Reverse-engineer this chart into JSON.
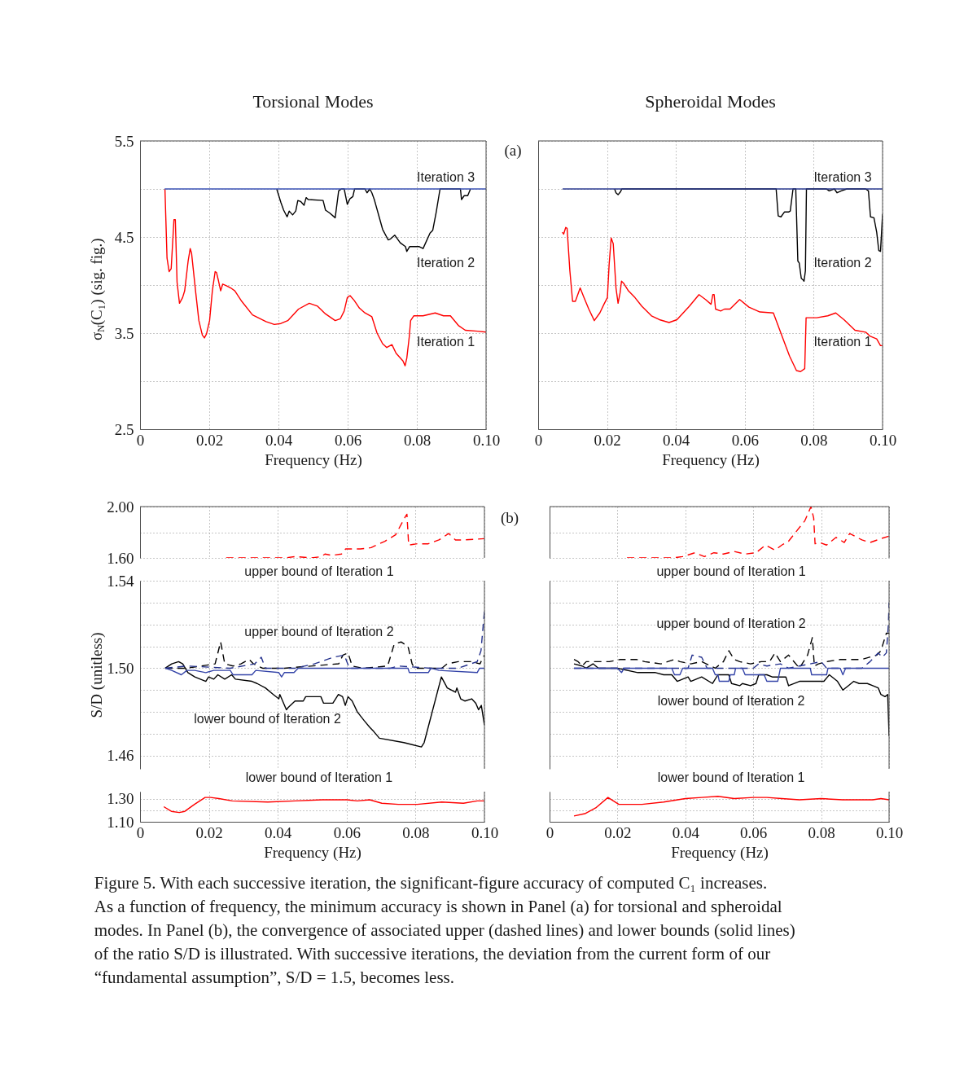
{
  "chart_data": [
    {
      "type": "line",
      "title": "Torsional Modes",
      "xlabel": "Frequency (Hz)",
      "ylabel": "σ$_{N}$(C₁) (sig. fig.)",
      "annotations": [
        "(a)"
      ],
      "xlim": [
        0,
        0.1
      ],
      "ylim": [
        2.5,
        5.5
      ],
      "xticks": [
        0,
        0.02,
        0.04,
        0.06,
        0.08,
        {
          "value": 0.1,
          "label": "0.10"
        }
      ],
      "yticks": [
        2.5,
        {
          "value": 3,
          "label": null
        },
        3.5,
        {
          "value": 4,
          "label": null
        },
        4.5,
        {
          "value": 5,
          "label": null
        },
        5.5
      ],
      "grid": true,
      "line_style": "solid",
      "series": [
        {
          "name": "Iteration 1",
          "color": "#ff0000",
          "x": [
            0.0072,
            0.0078,
            0.0084,
            0.009,
            0.0098,
            0.0102,
            0.0107,
            0.0114,
            0.0123,
            0.0129,
            0.0139,
            0.0145,
            0.0149,
            0.0161,
            0.017,
            0.018,
            0.0186,
            0.0192,
            0.0201,
            0.0209,
            0.0217,
            0.0221,
            0.0227,
            0.0233,
            0.0239,
            0.0251,
            0.0262,
            0.0274,
            0.0294,
            0.0325,
            0.0364,
            0.0388,
            0.0407,
            0.0427,
            0.0458,
            0.0489,
            0.0513,
            0.0536,
            0.0564,
            0.0579,
            0.059,
            0.0599,
            0.0607,
            0.0619,
            0.0634,
            0.065,
            0.067,
            0.0685,
            0.0701,
            0.0713,
            0.0728,
            0.074,
            0.076,
            0.0766,
            0.0771,
            0.0778,
            0.0782,
            0.0791,
            0.0818,
            0.0853,
            0.0877,
            0.0897,
            0.092,
            0.094,
            0.0975,
            0.1
          ],
          "values": [
            5.0,
            4.28,
            4.14,
            4.17,
            4.68,
            4.68,
            4.03,
            3.81,
            3.87,
            3.94,
            4.25,
            4.38,
            4.33,
            3.92,
            3.63,
            3.48,
            3.45,
            3.49,
            3.63,
            3.94,
            4.14,
            4.13,
            4.04,
            3.94,
            4.01,
            3.99,
            3.97,
            3.94,
            3.83,
            3.69,
            3.62,
            3.59,
            3.6,
            3.63,
            3.75,
            3.81,
            3.78,
            3.7,
            3.63,
            3.65,
            3.73,
            3.87,
            3.89,
            3.84,
            3.76,
            3.71,
            3.67,
            3.5,
            3.39,
            3.35,
            3.38,
            3.29,
            3.21,
            3.16,
            3.24,
            3.46,
            3.63,
            3.68,
            3.68,
            3.71,
            3.68,
            3.68,
            3.58,
            3.53,
            3.52,
            3.51
          ]
        },
        {
          "name": "Iteration 2",
          "color": "#000000",
          "x": [
            0.0395,
            0.0407,
            0.0415,
            0.0425,
            0.0431,
            0.0441,
            0.045,
            0.0456,
            0.0464,
            0.0474,
            0.048,
            0.0486,
            0.0529,
            0.0536,
            0.0548,
            0.0564,
            0.0574,
            0.0582,
            0.059,
            0.0599,
            0.0607,
            0.0615,
            0.062,
            0.065,
            0.0656,
            0.0664,
            0.067,
            0.0677,
            0.0691,
            0.0701,
            0.0717,
            0.0724,
            0.0736,
            0.0752,
            0.0767,
            0.0771,
            0.0779,
            0.0807,
            0.0818,
            0.0838,
            0.0846,
            0.0856,
            0.0867,
            0.0926,
            0.0929,
            0.0937,
            0.0947,
            0.0955
          ],
          "values": [
            5.0,
            4.86,
            4.78,
            4.71,
            4.77,
            4.73,
            4.77,
            4.88,
            4.87,
            4.83,
            4.91,
            4.89,
            4.88,
            4.78,
            4.75,
            4.7,
            4.98,
            5.0,
            5.0,
            4.84,
            4.9,
            4.92,
            5.0,
            5.0,
            4.96,
            5.0,
            4.96,
            4.89,
            4.71,
            4.58,
            4.47,
            4.48,
            4.52,
            4.44,
            4.4,
            4.35,
            4.4,
            4.4,
            4.38,
            4.54,
            4.57,
            4.76,
            5.0,
            5.0,
            4.89,
            4.93,
            4.93,
            5.0
          ]
        },
        {
          "name": "Iteration 3",
          "color": "#3a52b4",
          "x": [
            0.0071,
            0.1
          ],
          "values": [
            5.0,
            5.0
          ]
        }
      ]
    },
    {
      "type": "line",
      "title": "Spheroidal Modes",
      "xlabel": "Frequency (Hz)",
      "xlim": [
        0,
        0.1
      ],
      "ylim": [
        2.5,
        5.5
      ],
      "xticks": [
        0,
        0.02,
        0.04,
        0.06,
        0.08,
        {
          "value": 0.1,
          "label": "0.10"
        }
      ],
      "yticks": [
        {
          "value": 2.5,
          "label": null
        },
        {
          "value": 3,
          "label": null
        },
        {
          "value": 3.5,
          "label": null
        },
        {
          "value": 4,
          "label": null
        },
        {
          "value": 4.5,
          "label": null
        },
        {
          "value": 5,
          "label": null
        },
        {
          "value": 5.5,
          "label": null
        }
      ],
      "tick_labels": "x",
      "grid": true,
      "line_style": "solid",
      "series": [
        {
          "name": "Iteration 1",
          "color": "#ff0000",
          "x": [
            0.007,
            0.0074,
            0.008,
            0.0084,
            0.0092,
            0.01,
            0.0108,
            0.0122,
            0.0132,
            0.0147,
            0.0163,
            0.0179,
            0.0191,
            0.0201,
            0.0206,
            0.0212,
            0.0218,
            0.0226,
            0.0232,
            0.0238,
            0.0242,
            0.0248,
            0.0262,
            0.0281,
            0.0301,
            0.0329,
            0.0352,
            0.038,
            0.0403,
            0.0439,
            0.0467,
            0.0486,
            0.0502,
            0.0507,
            0.0511,
            0.0515,
            0.053,
            0.0541,
            0.0557,
            0.0585,
            0.0612,
            0.0644,
            0.0683,
            0.0711,
            0.073,
            0.075,
            0.0762,
            0.0774,
            0.0778,
            0.0809,
            0.0841,
            0.0864,
            0.0888,
            0.092,
            0.0951,
            0.0963,
            0.0983,
            0.0994,
            0.1
          ],
          "values": [
            4.55,
            4.53,
            4.6,
            4.59,
            4.15,
            3.83,
            3.83,
            3.97,
            3.88,
            3.75,
            3.63,
            3.71,
            3.8,
            3.87,
            4.21,
            4.49,
            4.43,
            3.97,
            3.81,
            3.92,
            4.04,
            4.02,
            3.94,
            3.87,
            3.78,
            3.68,
            3.64,
            3.61,
            3.64,
            3.78,
            3.9,
            3.85,
            3.8,
            3.9,
            3.9,
            3.75,
            3.73,
            3.75,
            3.75,
            3.85,
            3.77,
            3.72,
            3.71,
            3.44,
            3.26,
            3.11,
            3.1,
            3.13,
            3.66,
            3.66,
            3.68,
            3.71,
            3.64,
            3.53,
            3.51,
            3.47,
            3.44,
            3.37,
            3.37
          ]
        },
        {
          "name": "Iteration 2",
          "color": "#000000",
          "x": [
            0.0222,
            0.0226,
            0.0232,
            0.0239,
            0.0243,
            0.0691,
            0.0697,
            0.0705,
            0.0715,
            0.0727,
            0.0732,
            0.074,
            0.0748,
            0.0754,
            0.0758,
            0.0764,
            0.077,
            0.0772,
            0.0776,
            0.0779,
            0.0837,
            0.0845,
            0.0853,
            0.086,
            0.0868,
            0.088,
            0.0896,
            0.0951,
            0.0959,
            0.0965,
            0.0975,
            0.0983,
            0.0989,
            0.0994,
            0.1
          ],
          "values": [
            5.0,
            4.96,
            4.94,
            4.97,
            5.0,
            5.0,
            4.72,
            4.71,
            4.76,
            4.76,
            4.77,
            5.0,
            5.0,
            4.25,
            4.23,
            4.07,
            4.05,
            4.04,
            4.15,
            5.0,
            5.0,
            4.98,
            4.99,
            5.0,
            4.96,
            4.98,
            5.0,
            5.0,
            4.98,
            4.71,
            4.7,
            4.55,
            4.36,
            4.35,
            4.74
          ]
        },
        {
          "name": "Iteration 3",
          "color": "#2a3a8f",
          "x": [
            0.0071,
            0.1
          ],
          "values": [
            5.0,
            5.0
          ]
        }
      ]
    },
    {
      "type": "line",
      "annotations": [
        "(b)"
      ],
      "xlim": [
        0,
        0.1
      ],
      "ylim": [
        1.6,
        2.0
      ],
      "xticks": [
        {
          "value": 0,
          "label": null
        },
        {
          "value": 0.02,
          "label": null
        },
        {
          "value": 0.04,
          "label": null
        },
        {
          "value": 0.06,
          "label": null
        },
        {
          "value": 0.08,
          "label": null
        },
        {
          "value": 0.1,
          "label": null
        }
      ],
      "yticks": [
        {
          "value": 1.6,
          "label": "1.60"
        },
        {
          "value": 1.8,
          "label": null
        },
        {
          "value": 2,
          "label": "2.00"
        }
      ],
      "tick_labels": "y",
      "grid": true,
      "line_style": "dashed",
      "series": [
        {
          "name": "upper bound of Iteration 1",
          "color": "#ff0000",
          "x": [
            0.025,
            0.0317,
            0.0372,
            0.0419,
            0.0451,
            0.0498,
            0.0526,
            0.0537,
            0.0557,
            0.0585,
            0.0597,
            0.064,
            0.0671,
            0.0711,
            0.0742,
            0.077,
            0.0775,
            0.078,
            0.0805,
            0.0837,
            0.0868,
            0.0896,
            0.0916,
            0.0939,
            0.1
          ],
          "values": [
            1.6,
            1.6,
            1.6,
            1.6,
            1.61,
            1.6,
            1.61,
            1.63,
            1.62,
            1.63,
            1.67,
            1.67,
            1.68,
            1.73,
            1.78,
            1.92,
            1.94,
            1.7,
            1.71,
            1.71,
            1.74,
            1.79,
            1.74,
            1.74,
            1.75
          ]
        }
      ]
    },
    {
      "type": "line",
      "ylabel": "S/D (unitless)",
      "xlim": [
        0,
        0.1
      ],
      "ylim": [
        1.454,
        1.54
      ],
      "xticks": [
        {
          "value": 0,
          "label": null
        },
        {
          "value": 0.02,
          "label": null
        },
        {
          "value": 0.04,
          "label": null
        },
        {
          "value": 0.06,
          "label": null
        },
        {
          "value": 0.08,
          "label": null
        },
        {
          "value": 0.1,
          "label": null
        }
      ],
      "yticks": [
        1.46,
        {
          "value": 1.47,
          "label": null
        },
        {
          "value": 1.48,
          "label": null
        },
        {
          "value": 1.49,
          "label": null
        },
        {
          "value": 1.5,
          "label": "1.50"
        },
        {
          "value": 1.51,
          "label": null
        },
        {
          "value": 1.52,
          "label": null
        },
        {
          "value": 1.53,
          "label": null
        },
        1.54
      ],
      "tick_labels": "y",
      "grid": true,
      "line_style": "solid",
      "series": [
        {
          "name": "upper bound of Iteration 2",
          "color": "#000000",
          "line_style": "dashed",
          "x": [
            0.0073,
            0.0136,
            0.0218,
            0.0234,
            0.0246,
            0.027,
            0.0293,
            0.0317,
            0.0329,
            0.0356,
            0.0419,
            0.0577,
            0.0589,
            0.0604,
            0.0616,
            0.0648,
            0.0719,
            0.0738,
            0.0758,
            0.0778,
            0.079,
            0.0797,
            0.0876,
            0.0892,
            0.0924,
            0.0963,
            0.0987,
            0.1
          ],
          "values": [
            1.5,
            1.5,
            1.502,
            1.512,
            1.502,
            1.501,
            1.502,
            1.504,
            1.502,
            1.5,
            1.5,
            1.502,
            1.506,
            1.507,
            1.501,
            1.5,
            1.501,
            1.511,
            1.512,
            1.51,
            1.502,
            1.5,
            1.5,
            1.502,
            1.503,
            1.503,
            1.502,
            1.506
          ]
        },
        {
          "name": "lower bound of Iteration 2",
          "color": "#000000",
          "x": [
            0.0073,
            0.0092,
            0.0112,
            0.0124,
            0.0139,
            0.0159,
            0.0175,
            0.0191,
            0.0199,
            0.0214,
            0.0226,
            0.0246,
            0.0266,
            0.0277,
            0.0325,
            0.034,
            0.0364,
            0.0387,
            0.0403,
            0.0406,
            0.0425,
            0.043,
            0.045,
            0.0474,
            0.0481,
            0.0525,
            0.0533,
            0.056,
            0.0576,
            0.0588,
            0.0596,
            0.0604,
            0.0616,
            0.0631,
            0.0651,
            0.0667,
            0.0679,
            0.0695,
            0.0766,
            0.0817,
            0.0825,
            0.0845,
            0.0875,
            0.0892,
            0.0916,
            0.092,
            0.0931,
            0.0943,
            0.0963,
            0.0975,
            0.0983,
            0.0991,
            0.1
          ],
          "values": [
            1.5,
            1.502,
            1.503,
            1.502,
            1.498,
            1.496,
            1.495,
            1.494,
            1.496,
            1.495,
            1.497,
            1.495,
            1.497,
            1.495,
            1.494,
            1.493,
            1.491,
            1.488,
            1.486,
            1.488,
            1.481,
            1.482,
            1.485,
            1.485,
            1.487,
            1.487,
            1.484,
            1.484,
            1.488,
            1.487,
            1.483,
            1.487,
            1.485,
            1.48,
            1.476,
            1.473,
            1.471,
            1.468,
            1.466,
            1.464,
            1.466,
            1.478,
            1.496,
            1.491,
            1.489,
            1.491,
            1.486,
            1.485,
            1.486,
            1.484,
            1.481,
            1.483,
            1.474
          ]
        },
        {
          "color": "#23308c",
          "line_style": "dashed",
          "x": [
            0.0073,
            0.0136,
            0.0262,
            0.0333,
            0.0352,
            0.0364,
            0.045,
            0.0506,
            0.0561,
            0.0593,
            0.0608,
            0.0727,
            0.075,
            0.0845,
            0.0924,
            0.0979,
            0.099,
            0.1
          ],
          "values": [
            1.5,
            1.501,
            1.5,
            1.502,
            1.505,
            1.5,
            1.5,
            1.502,
            1.505,
            1.506,
            1.5,
            1.5,
            1.501,
            1.5,
            1.5,
            1.503,
            1.508,
            1.526
          ]
        },
        {
          "color": "#3444a8",
          "x": [
            0.0073,
            0.0092,
            0.012,
            0.0136,
            0.0159,
            0.0191,
            0.0214,
            0.0262,
            0.027,
            0.0325,
            0.0336,
            0.0403,
            0.0411,
            0.0419,
            0.0447,
            0.0459,
            0.0778,
            0.0782,
            0.0837,
            0.0845,
            0.0868,
            0.0979,
            0.0986,
            0.1
          ],
          "values": [
            1.5,
            1.499,
            1.497,
            1.499,
            1.499,
            1.498,
            1.499,
            1.499,
            1.497,
            1.497,
            1.499,
            1.498,
            1.496,
            1.498,
            1.498,
            1.5,
            1.5,
            1.498,
            1.498,
            1.5,
            1.499,
            1.498,
            1.5,
            1.5
          ]
        }
      ]
    },
    {
      "type": "line",
      "xlabel": "Frequency (Hz)",
      "annotations": [
        "Figure 5. With each successive iteration, the significant-figure accuracy of computed C₁ increases.\nAs a function of frequency, the minimum accuracy is shown in Panel (a) for torsional and spheroidal\nmodes. In Panel (b), the convergence of associated upper (dashed lines) and lower bounds (solid lines)\nof the ratio S/D is illustrated. With successive iterations, the deviation from the current form of our\n“fundamental assumption”, S/D = 1.5, becomes less."
      ],
      "xlim": [
        0,
        0.1
      ],
      "ylim": [
        1.1,
        1.36
      ],
      "xticks": [
        0,
        0.02,
        0.04,
        0.06,
        0.08,
        {
          "value": 0.1,
          "label": "0.10"
        }
      ],
      "yticks": [
        {
          "value": 1.1,
          "label": "1.10"
        },
        {
          "value": 1.2,
          "label": null
        },
        {
          "value": 1.3,
          "label": "1.30"
        }
      ],
      "grid": true,
      "line_style": "solid",
      "series": [
        {
          "name": "lower bound of Iteration 1",
          "color": "#ff0000",
          "x": [
            0.0069,
            0.0091,
            0.0114,
            0.013,
            0.0158,
            0.0189,
            0.0205,
            0.0229,
            0.0268,
            0.0371,
            0.045,
            0.0529,
            0.06,
            0.0631,
            0.0667,
            0.0702,
            0.075,
            0.0805,
            0.0876,
            0.0939,
            0.0979,
            0.1
          ],
          "values": [
            1.23,
            1.19,
            1.18,
            1.19,
            1.25,
            1.31,
            1.31,
            1.3,
            1.28,
            1.27,
            1.28,
            1.29,
            1.29,
            1.28,
            1.29,
            1.26,
            1.25,
            1.25,
            1.27,
            1.26,
            1.28,
            1.28
          ]
        }
      ]
    },
    {
      "type": "line",
      "xlim": [
        0,
        0.1
      ],
      "ylim": [
        1.6,
        2.0
      ],
      "xticks": [
        {
          "value": 0,
          "label": null
        },
        {
          "value": 0.02,
          "label": null
        },
        {
          "value": 0.04,
          "label": null
        },
        {
          "value": 0.06,
          "label": null
        },
        {
          "value": 0.08,
          "label": null
        },
        {
          "value": 0.1,
          "label": null
        }
      ],
      "yticks": [
        {
          "value": 1.6,
          "label": null
        },
        {
          "value": 1.8,
          "label": null
        },
        {
          "value": 2,
          "label": null
        }
      ],
      "tick_labels": false,
      "grid": true,
      "line_style": "dashed",
      "series": [
        {
          "name": "upper bound of Iteration 1",
          "color": "#ff0000",
          "x": [
            0.0228,
            0.0312,
            0.0364,
            0.0392,
            0.0428,
            0.0456,
            0.0484,
            0.0512,
            0.0544,
            0.0576,
            0.0608,
            0.0636,
            0.0664,
            0.0684,
            0.0704,
            0.0728,
            0.0752,
            0.077,
            0.0778,
            0.0782,
            0.0796,
            0.0816,
            0.0844,
            0.0868,
            0.0884,
            0.092,
            0.0944,
            0.0976,
            0.1
          ],
          "values": [
            1.6,
            1.6,
            1.6,
            1.61,
            1.64,
            1.61,
            1.64,
            1.63,
            1.65,
            1.63,
            1.64,
            1.7,
            1.66,
            1.7,
            1.73,
            1.81,
            1.89,
            2.0,
            1.91,
            1.71,
            1.72,
            1.7,
            1.76,
            1.72,
            1.79,
            1.74,
            1.72,
            1.75,
            1.77
          ]
        }
      ]
    },
    {
      "type": "line",
      "xlim": [
        0,
        0.1
      ],
      "ylim": [
        1.454,
        1.54
      ],
      "xticks": [
        {
          "value": 0,
          "label": null
        },
        {
          "value": 0.02,
          "label": null
        },
        {
          "value": 0.04,
          "label": null
        },
        {
          "value": 0.06,
          "label": null
        },
        {
          "value": 0.08,
          "label": null
        },
        {
          "value": 0.1,
          "label": null
        }
      ],
      "yticks": [
        {
          "value": 1.46,
          "label": null
        },
        {
          "value": 1.47,
          "label": null
        },
        {
          "value": 1.48,
          "label": null
        },
        {
          "value": 1.49,
          "label": null
        },
        {
          "value": 1.5,
          "label": null
        },
        {
          "value": 1.51,
          "label": null
        },
        {
          "value": 1.52,
          "label": null
        },
        {
          "value": 1.53,
          "label": null
        },
        {
          "value": 1.54,
          "label": null
        }
      ],
      "tick_labels": false,
      "grid": true,
      "line_style": "solid",
      "series": [
        {
          "name": "upper bound of Iteration 2",
          "color": "#000000",
          "line_style": "dashed",
          "x": [
            0.0072,
            0.0084,
            0.0096,
            0.0108,
            0.0128,
            0.0152,
            0.0176,
            0.0208,
            0.0256,
            0.028,
            0.0328,
            0.0368,
            0.0384,
            0.0416,
            0.0448,
            0.0488,
            0.0512,
            0.0528,
            0.0544,
            0.056,
            0.0592,
            0.0624,
            0.0648,
            0.0664,
            0.068,
            0.0704,
            0.0736,
            0.076,
            0.0774,
            0.078,
            0.0792,
            0.0816,
            0.0856,
            0.092,
            0.0964,
            0.0976,
            0.0992,
            0.1
          ],
          "values": [
            1.504,
            1.503,
            1.501,
            1.503,
            1.503,
            1.503,
            1.503,
            1.504,
            1.504,
            1.503,
            1.502,
            1.504,
            1.503,
            1.502,
            1.503,
            1.5,
            1.503,
            1.508,
            1.504,
            1.503,
            1.502,
            1.503,
            1.503,
            1.507,
            1.503,
            1.506,
            1.5,
            1.506,
            1.514,
            1.501,
            1.502,
            1.503,
            1.504,
            1.504,
            1.506,
            1.508,
            1.516,
            1.516
          ]
        },
        {
          "name": "lower bound of Iteration 2",
          "color": "#000000",
          "x": [
            0.0072,
            0.0096,
            0.0108,
            0.0128,
            0.0144,
            0.02,
            0.026,
            0.0312,
            0.0336,
            0.036,
            0.0376,
            0.0408,
            0.0416,
            0.0448,
            0.048,
            0.0496,
            0.0528,
            0.0536,
            0.056,
            0.0568,
            0.0592,
            0.0608,
            0.0616,
            0.064,
            0.0656,
            0.0696,
            0.0704,
            0.0736,
            0.0776,
            0.0808,
            0.0824,
            0.0848,
            0.0864,
            0.088,
            0.0896,
            0.0912,
            0.0936,
            0.0952,
            0.0968,
            0.0976,
            0.0988,
            0.0996,
            0.1
          ],
          "values": [
            1.502,
            1.501,
            1.5,
            1.502,
            1.5,
            1.5,
            1.498,
            1.498,
            1.497,
            1.497,
            1.494,
            1.496,
            1.494,
            1.496,
            1.493,
            1.497,
            1.497,
            1.493,
            1.492,
            1.493,
            1.492,
            1.493,
            1.497,
            1.497,
            1.496,
            1.496,
            1.492,
            1.494,
            1.494,
            1.494,
            1.497,
            1.494,
            1.49,
            1.492,
            1.494,
            1.493,
            1.493,
            1.492,
            1.491,
            1.488,
            1.487,
            1.488,
            1.469
          ]
        },
        {
          "color": "#23308c",
          "line_style": "dashed",
          "x": [
            0.0072,
            0.0408,
            0.042,
            0.0448,
            0.0464,
            0.06,
            0.0616,
            0.064,
            0.068,
            0.0704,
            0.08,
            0.0816,
            0.092,
            0.0944,
            0.0968,
            0.098,
            0.0992,
            0.0998,
            0.1
          ],
          "values": [
            1.5,
            1.5,
            1.506,
            1.505,
            1.5,
            1.5,
            1.502,
            1.501,
            1.502,
            1.5,
            1.503,
            1.5,
            1.5,
            1.503,
            1.507,
            1.505,
            1.507,
            1.52,
            1.53
          ]
        },
        {
          "color": "#3444a8",
          "x": [
            0.0072,
            0.02,
            0.0212,
            0.022,
            0.036,
            0.0368,
            0.0384,
            0.0392,
            0.048,
            0.0488,
            0.0496,
            0.05,
            0.0528,
            0.0532,
            0.0544,
            0.0548,
            0.0568,
            0.0576,
            0.0632,
            0.064,
            0.0672,
            0.068,
            0.0768,
            0.0772,
            0.0816,
            0.082,
            0.0856,
            0.0864,
            0.0872,
            0.1
          ],
          "values": [
            1.5,
            1.5,
            1.498,
            1.5,
            1.5,
            1.497,
            1.497,
            1.5,
            1.5,
            1.497,
            1.497,
            1.494,
            1.494,
            1.497,
            1.497,
            1.5,
            1.5,
            1.497,
            1.497,
            1.494,
            1.494,
            1.5,
            1.5,
            1.497,
            1.497,
            1.5,
            1.5,
            1.497,
            1.5,
            1.5
          ]
        }
      ]
    },
    {
      "type": "line",
      "xlabel": "Frequency (Hz)",
      "xlim": [
        0,
        0.1
      ],
      "ylim": [
        1.1,
        1.36
      ],
      "xticks": [
        0,
        0.02,
        0.04,
        0.06,
        0.08,
        {
          "value": 0.1,
          "label": "0.10"
        }
      ],
      "yticks": [
        {
          "value": 1.1,
          "label": null
        },
        {
          "value": 1.2,
          "label": null
        },
        {
          "value": 1.3,
          "label": null
        }
      ],
      "tick_labels": "x",
      "grid": true,
      "line_style": "solid",
      "series": [
        {
          "name": "lower bound of Iteration 1",
          "color": "#ff0000",
          "x": [
            0.0072,
            0.0104,
            0.0136,
            0.0172,
            0.0204,
            0.0224,
            0.0272,
            0.0336,
            0.04,
            0.0448,
            0.0496,
            0.0544,
            0.06,
            0.064,
            0.0684,
            0.0736,
            0.08,
            0.0864,
            0.0904,
            0.0952,
            0.0976,
            0.1
          ],
          "values": [
            1.15,
            1.17,
            1.22,
            1.31,
            1.25,
            1.25,
            1.25,
            1.27,
            1.3,
            1.31,
            1.32,
            1.3,
            1.31,
            1.31,
            1.3,
            1.29,
            1.3,
            1.29,
            1.29,
            1.29,
            1.3,
            1.29
          ]
        }
      ]
    }
  ]
}
